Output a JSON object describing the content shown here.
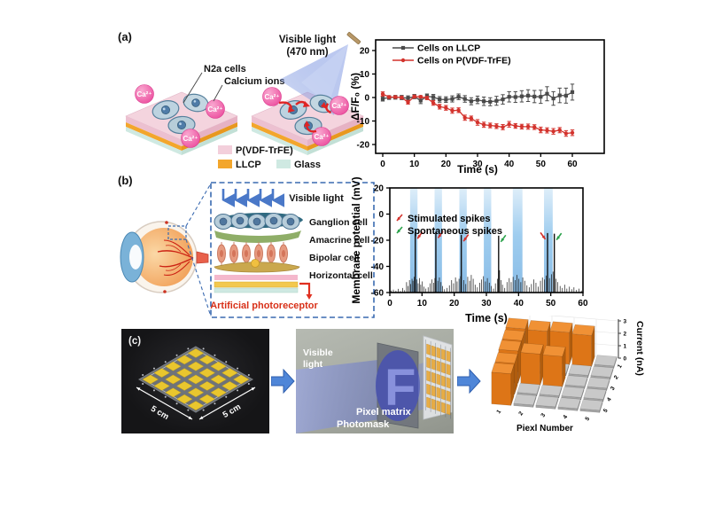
{
  "figure": {
    "panel_a": {
      "label": "(a)",
      "diagram": {
        "cells_label": "N2a cells",
        "ions_label": "Calcium ions",
        "light_line1": "Visible light",
        "light_line2": "(470 nm)",
        "ca_label": "Ca²⁺",
        "legend": [
          {
            "label": "P(VDF-TrFE)",
            "color": "#f3cfdb"
          },
          {
            "label": "LLCP",
            "color": "#f3a62c"
          },
          {
            "label": "Glass",
            "color": "#cfe9e2"
          }
        ]
      }
    },
    "panel_b": {
      "label": "(b)",
      "diagram": {
        "visible_light": "Visible light",
        "layer_labels": [
          "Ganglion cell",
          "Amacrine cell",
          "Bipolar cell",
          "Horizontal cell"
        ],
        "photoreceptor_label": "Artificial photoreceptor"
      }
    },
    "panel_c": {
      "label": "(c)",
      "photo": {
        "dim_left": "5 cm",
        "dim_right": "5 cm",
        "grid_size": 5
      },
      "middle": {
        "visible_light_line1": "Visible",
        "visible_light_line2": "light",
        "photomask_label": "Photomask",
        "pixel_matrix_label": "Pixel matrix",
        "mask_letter": "F"
      }
    }
  },
  "chart_data": [
    {
      "type": "line",
      "xlabel": "Time (s)",
      "ylabel": "ΔF/F₀ (%)",
      "xlim": [
        0,
        60
      ],
      "ylim": [
        -20,
        20
      ],
      "xticks": [
        0,
        10,
        20,
        30,
        40,
        50,
        60
      ],
      "yticks": [
        -20,
        -10,
        0,
        10,
        20
      ],
      "grid": false,
      "legend_position": "top-left",
      "x": [
        0,
        2,
        4,
        6,
        8,
        10,
        12,
        14,
        16,
        18,
        20,
        22,
        24,
        26,
        28,
        30,
        32,
        34,
        36,
        38,
        40,
        42,
        44,
        46,
        48,
        50,
        52,
        54,
        56,
        58,
        60
      ],
      "series": [
        {
          "name": "Cells on LLCP",
          "color": "#4a4a4a",
          "marker": "square",
          "values": [
            -0.5,
            0.0,
            0.1,
            0.0,
            -0.3,
            0.4,
            -1.3,
            0.5,
            0.2,
            -0.8,
            -0.9,
            -0.6,
            0.3,
            -0.6,
            -1.6,
            -1.0,
            -1.6,
            -1.8,
            -1.4,
            -0.8,
            0.3,
            0.2,
            0.5,
            0.8,
            0.4,
            0.3,
            1.6,
            -0.4,
            0.9,
            0.8,
            2.3
          ],
          "errors": [
            1.0,
            0.8,
            0.8,
            0.9,
            1.0,
            0.9,
            1.3,
            1.0,
            1.1,
            1.2,
            1.2,
            1.3,
            1.2,
            1.4,
            1.5,
            1.6,
            1.8,
            1.7,
            1.9,
            2.0,
            2.2,
            2.3,
            2.4,
            2.5,
            2.6,
            2.8,
            3.0,
            2.9,
            3.1,
            3.2,
            3.4
          ]
        },
        {
          "name": "Cells on P(VDF-TrFE)",
          "color": "#d3322c",
          "marker": "circle",
          "values": [
            1.5,
            0.2,
            0.2,
            0.0,
            -2.0,
            0.4,
            0.3,
            -0.2,
            -2.3,
            -3.9,
            -4.4,
            -5.6,
            -5.4,
            -8.6,
            -8.9,
            -10.6,
            -11.6,
            -11.9,
            -12.2,
            -12.6,
            -11.4,
            -12.1,
            -12.4,
            -12.4,
            -12.6,
            -13.8,
            -14.0,
            -14.4,
            -13.9,
            -15.3,
            -15.0
          ],
          "errors": [
            0.9,
            0.5,
            0.5,
            0.5,
            0.8,
            0.6,
            0.5,
            0.7,
            1.0,
            1.0,
            1.0,
            1.1,
            1.0,
            1.1,
            1.0,
            1.2,
            1.1,
            1.0,
            1.0,
            1.1,
            1.2,
            1.0,
            1.0,
            1.1,
            1.0,
            1.2,
            1.1,
            1.2,
            1.1,
            1.2,
            1.2
          ]
        }
      ]
    },
    {
      "type": "spike-train",
      "xlabel": "Time (s)",
      "ylabel": "Membrane potential (mV)",
      "xlim": [
        0,
        60
      ],
      "ylim": [
        -60,
        20
      ],
      "xticks": [
        0,
        10,
        20,
        30,
        40,
        50,
        60
      ],
      "yticks": [
        20,
        0,
        -20,
        -40,
        -60
      ],
      "baseline": -60,
      "band_color": "#7ab4e4",
      "light_bands": [
        [
          6.3,
          8.6
        ],
        [
          13.9,
          16.2
        ],
        [
          21.6,
          23.9
        ],
        [
          29.2,
          31.5
        ],
        [
          38.2,
          41.2
        ],
        [
          47.9,
          50.6
        ]
      ],
      "legend": [
        {
          "label": "Stimulated spikes",
          "color": "#d3322c"
        },
        {
          "label": "Spontaneous spikes",
          "color": "#2aa14a"
        }
      ],
      "big_spikes": [
        {
          "x": 7.9,
          "peak": -14.0,
          "type": "stim",
          "dir": "dl"
        },
        {
          "x": 14.3,
          "peak": -13.5,
          "type": "stim",
          "dir": "dl"
        },
        {
          "x": 22.2,
          "peak": -16.0,
          "type": "stim",
          "dir": "dl"
        },
        {
          "x": 33.8,
          "peak": -16.5,
          "type": "spont",
          "dir": "dl"
        },
        {
          "x": 49.0,
          "peak": -14.5,
          "type": "stim",
          "dir": "dr"
        },
        {
          "x": 51.1,
          "peak": -15.0,
          "type": "spont",
          "dir": "dl"
        }
      ],
      "noise_spikes": [
        [
          0.4,
          -58.5
        ],
        [
          1.1,
          -57.8
        ],
        [
          1.9,
          -58.6
        ],
        [
          2.6,
          -57.2
        ],
        [
          3.3,
          -58.8
        ],
        [
          4.0,
          -56.5
        ],
        [
          4.6,
          -58.2
        ],
        [
          5.2,
          -52.0
        ],
        [
          5.7,
          -55.0
        ],
        [
          6.1,
          -50.5
        ],
        [
          6.5,
          -53.5
        ],
        [
          6.9,
          -49.5
        ],
        [
          7.2,
          -51.0
        ],
        [
          7.6,
          -48.0
        ],
        [
          8.4,
          -50.0
        ],
        [
          8.8,
          -53.0
        ],
        [
          9.2,
          -49.0
        ],
        [
          9.6,
          -54.0
        ],
        [
          10.1,
          -51.5
        ],
        [
          10.6,
          -55.5
        ],
        [
          11.2,
          -57.0
        ],
        [
          11.9,
          -56.0
        ],
        [
          12.5,
          -53.0
        ],
        [
          13.1,
          -50.0
        ],
        [
          13.6,
          -52.5
        ],
        [
          14.0,
          -49.0
        ],
        [
          14.9,
          -51.0
        ],
        [
          15.4,
          -48.5
        ],
        [
          15.9,
          -52.0
        ],
        [
          16.4,
          -55.0
        ],
        [
          17.0,
          -57.5
        ],
        [
          17.8,
          -56.5
        ],
        [
          18.5,
          -54.5
        ],
        [
          19.2,
          -50.5
        ],
        [
          19.8,
          -53.0
        ],
        [
          20.4,
          -48.5
        ],
        [
          20.9,
          -51.5
        ],
        [
          21.5,
          -49.5
        ],
        [
          22.0,
          -47.5
        ],
        [
          23.0,
          -50.5
        ],
        [
          23.6,
          -53.5
        ],
        [
          24.2,
          -48.0
        ],
        [
          24.8,
          -51.0
        ],
        [
          25.3,
          -46.5
        ],
        [
          25.9,
          -49.5
        ],
        [
          26.5,
          -54.0
        ],
        [
          27.2,
          -56.0
        ],
        [
          27.9,
          -52.5
        ],
        [
          28.5,
          -50.0
        ],
        [
          29.1,
          -47.5
        ],
        [
          29.7,
          -51.5
        ],
        [
          30.3,
          -49.0
        ],
        [
          30.9,
          -52.5
        ],
        [
          31.5,
          -55.0
        ],
        [
          32.2,
          -57.0
        ],
        [
          32.8,
          -53.0
        ],
        [
          33.4,
          -49.5
        ],
        [
          34.1,
          -43.0
        ],
        [
          34.5,
          -50.5
        ],
        [
          35.0,
          -54.0
        ],
        [
          35.7,
          -56.5
        ],
        [
          36.4,
          -52.0
        ],
        [
          37.1,
          -49.0
        ],
        [
          37.7,
          -52.0
        ],
        [
          38.3,
          -48.0
        ],
        [
          38.9,
          -50.5
        ],
        [
          39.5,
          -46.5
        ],
        [
          40.1,
          -49.5
        ],
        [
          40.7,
          -52.0
        ],
        [
          41.3,
          -48.5
        ],
        [
          41.9,
          -51.0
        ],
        [
          42.6,
          -54.5
        ],
        [
          43.3,
          -56.0
        ],
        [
          44.0,
          -53.5
        ],
        [
          44.7,
          -50.0
        ],
        [
          45.4,
          -52.5
        ],
        [
          46.1,
          -55.5
        ],
        [
          46.8,
          -51.0
        ],
        [
          47.4,
          -48.5
        ],
        [
          48.0,
          -50.0
        ],
        [
          48.6,
          -47.0
        ],
        [
          49.6,
          -49.0
        ],
        [
          50.2,
          -46.0
        ],
        [
          50.7,
          -44.0
        ],
        [
          51.6,
          -49.5
        ],
        [
          52.2,
          -52.0
        ],
        [
          52.9,
          -55.0
        ],
        [
          53.6,
          -56.5
        ],
        [
          54.3,
          -54.0
        ],
        [
          55.0,
          -57.0
        ],
        [
          55.8,
          -55.5
        ],
        [
          56.5,
          -57.5
        ],
        [
          57.2,
          -56.0
        ],
        [
          58.0,
          -58.0
        ],
        [
          58.8,
          -57.0
        ],
        [
          59.5,
          -58.5
        ]
      ]
    },
    {
      "type": "bar3d",
      "xlabel": "Piexl Number",
      "zlabel": "Current (nA)",
      "x_categories": [
        "1",
        "2",
        "3",
        "4",
        "5"
      ],
      "depth_categories": [
        "1",
        "2",
        "3",
        "4",
        "5"
      ],
      "zticks": [
        0,
        1,
        2,
        3
      ],
      "high_threshold": 1,
      "colors": {
        "high": {
          "top": "#f09135",
          "front": "#dd7517",
          "side": "#b15d0e"
        },
        "low": {
          "top": "#c9c9c9",
          "front": "#a4a4a4",
          "side": "#939393"
        }
      },
      "values": [
        [
          2.6,
          2.55,
          2.6,
          2.5,
          0.18
        ],
        [
          2.55,
          0.18,
          0.18,
          0.18,
          0.18
        ],
        [
          2.6,
          2.5,
          2.45,
          0.18,
          0.18
        ],
        [
          2.5,
          0.18,
          0.18,
          0.18,
          0.18
        ],
        [
          2.55,
          0.18,
          0.18,
          0.18,
          0.18
        ]
      ]
    }
  ]
}
